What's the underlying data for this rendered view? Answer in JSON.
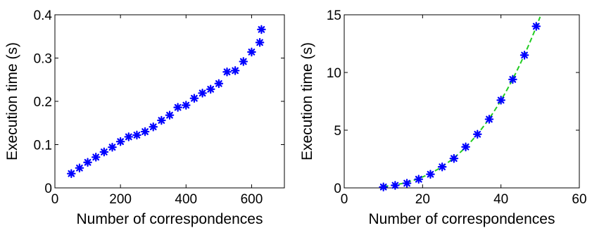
{
  "chart_data": [
    {
      "type": "scatter",
      "title": "",
      "xlabel": "Number of correspondences",
      "ylabel": "Execution time (s)",
      "xlim": [
        0,
        700
      ],
      "ylim": [
        0,
        0.4
      ],
      "xticks": [
        "0",
        "200",
        "400",
        "600"
      ],
      "xtick_values": [
        0,
        200,
        400,
        600
      ],
      "yticks": [
        "0",
        "0.1",
        "0.2",
        "0.3",
        "0.4"
      ],
      "ytick_values": [
        0,
        0.1,
        0.2,
        0.3,
        0.4
      ],
      "grid": false,
      "marker_color": "#0000ff",
      "series": [
        {
          "marker": "asterisk",
          "x": [
            50,
            75,
            100,
            125,
            150,
            175,
            200,
            225,
            250,
            275,
            300,
            325,
            350,
            375,
            400,
            425,
            450,
            475,
            500,
            525,
            550,
            575,
            600,
            625
          ],
          "y": [
            0.033,
            0.046,
            0.059,
            0.071,
            0.083,
            0.094,
            0.107,
            0.118,
            0.122,
            0.13,
            0.141,
            0.156,
            0.168,
            0.186,
            0.191,
            0.207,
            0.219,
            0.228,
            0.241,
            0.268,
            0.271,
            0.292,
            0.314,
            0.336
          ]
        }
      ],
      "last_point": {
        "x": 630,
        "y": 0.366
      }
    },
    {
      "type": "scatter",
      "title": "",
      "xlabel": "Number of correspondences",
      "ylabel": "Execution time (s)",
      "xlim": [
        0,
        60
      ],
      "ylim": [
        0,
        15
      ],
      "xticks": [
        "0",
        "20",
        "40",
        "60"
      ],
      "xtick_values": [
        0,
        20,
        40,
        60
      ],
      "yticks": [
        "0",
        "5",
        "10",
        "15"
      ],
      "ytick_values": [
        0,
        5,
        10,
        15
      ],
      "grid": false,
      "marker_color": "#0000ff",
      "fit_color": "#22cc22",
      "series": [
        {
          "marker": "asterisk",
          "x": [
            10,
            13,
            16,
            19,
            22,
            25,
            28,
            31,
            34,
            37,
            40,
            43,
            46,
            49
          ],
          "y": [
            0.08,
            0.22,
            0.4,
            0.75,
            1.18,
            1.82,
            2.55,
            3.55,
            4.65,
            5.95,
            7.6,
            9.4,
            11.5,
            14.0
          ]
        },
        {
          "style": "dashed-fit",
          "coefficients": [
            0.0001186,
            0.0
          ]
        }
      ]
    }
  ]
}
